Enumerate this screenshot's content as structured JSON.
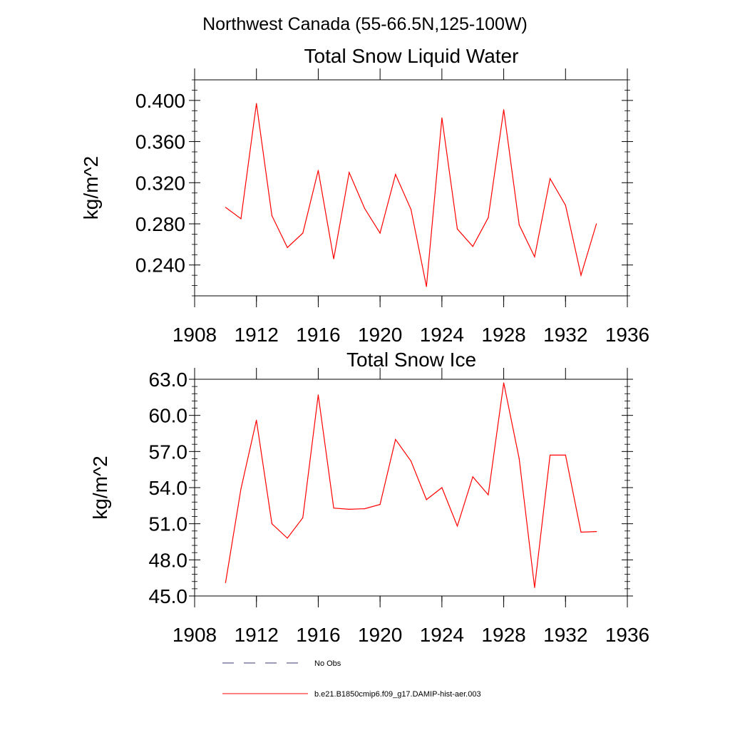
{
  "page_title": "Northwest Canada (55-66.5N,125-100W)",
  "chart_data": [
    {
      "type": "line",
      "title": "Total Snow Liquid Water",
      "xlabel": "",
      "ylabel": "kg/m^2",
      "xlim": [
        1908,
        1936
      ],
      "ylim": [
        0.21,
        0.42
      ],
      "x_ticks": [
        "1908",
        "1912",
        "1916",
        "1920",
        "1924",
        "1928",
        "1932",
        "1936"
      ],
      "y_ticks": [
        "0.240",
        "0.280",
        "0.320",
        "0.360",
        "0.400"
      ],
      "series": [
        {
          "color": "#ff0000",
          "x": [
            1910,
            1911,
            1912,
            1913,
            1914,
            1915,
            1916,
            1917,
            1918,
            1919,
            1920,
            1921,
            1922,
            1923,
            1924,
            1925,
            1926,
            1927,
            1928,
            1929,
            1930,
            1931,
            1932,
            1933,
            1934
          ],
          "values": [
            0.296,
            0.285,
            0.397,
            0.288,
            0.257,
            0.271,
            0.332,
            0.246,
            0.33,
            0.295,
            0.271,
            0.328,
            0.294,
            0.219,
            0.383,
            0.275,
            0.258,
            0.286,
            0.391,
            0.279,
            0.248,
            0.324,
            0.298,
            0.23,
            0.28
          ]
        }
      ]
    },
    {
      "type": "line",
      "title": "Total Snow Ice",
      "xlabel": "",
      "ylabel": "kg/m^2",
      "xlim": [
        1908,
        1936
      ],
      "ylim": [
        45.0,
        63.0
      ],
      "x_ticks": [
        "1908",
        "1912",
        "1916",
        "1920",
        "1924",
        "1928",
        "1932",
        "1936"
      ],
      "y_ticks": [
        "45.0",
        "48.0",
        "51.0",
        "54.0",
        "57.0",
        "60.0",
        "63.0"
      ],
      "series": [
        {
          "color": "#ff0000",
          "x": [
            1910,
            1911,
            1912,
            1913,
            1914,
            1915,
            1916,
            1917,
            1918,
            1919,
            1920,
            1921,
            1922,
            1923,
            1924,
            1925,
            1926,
            1927,
            1928,
            1929,
            1930,
            1931,
            1932,
            1933,
            1934
          ],
          "values": [
            46.1,
            53.9,
            59.6,
            51.0,
            49.8,
            51.5,
            61.7,
            52.3,
            52.2,
            52.25,
            52.6,
            58.0,
            56.2,
            53.0,
            54.0,
            50.8,
            54.9,
            53.4,
            62.7,
            56.4,
            45.7,
            56.7,
            56.7,
            50.3,
            50.35
          ]
        }
      ]
    }
  ],
  "legend": [
    {
      "label": "No Obs",
      "style": "dashed",
      "color": "#3a3a6e"
    },
    {
      "label": "b.e21.B1850cmip6.f09_g17.DAMIP-hist-aer.003",
      "style": "solid",
      "color": "#ff0000"
    }
  ]
}
